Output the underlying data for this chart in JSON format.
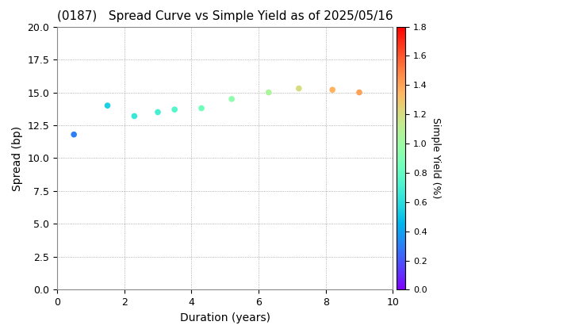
{
  "title": "(0187)   Spread Curve vs Simple Yield as of 2025/05/16",
  "xlabel": "Duration (years)",
  "ylabel": "Spread (bp)",
  "colorbar_label": "Simple Yield (%)",
  "xlim": [
    0,
    10
  ],
  "ylim": [
    0.0,
    20.0
  ],
  "xticks": [
    0,
    2,
    4,
    6,
    8,
    10
  ],
  "yticks": [
    0.0,
    2.5,
    5.0,
    7.5,
    10.0,
    12.5,
    15.0,
    17.5,
    20.0
  ],
  "colorbar_min": 0.0,
  "colorbar_max": 1.8,
  "colorbar_ticks": [
    0.0,
    0.2,
    0.4,
    0.6,
    0.8,
    1.0,
    1.2,
    1.4,
    1.6,
    1.8
  ],
  "points": [
    {
      "duration": 0.5,
      "spread": 11.8,
      "simple_yield": 0.3
    },
    {
      "duration": 1.5,
      "spread": 14.0,
      "simple_yield": 0.55
    },
    {
      "duration": 2.3,
      "spread": 13.2,
      "simple_yield": 0.65
    },
    {
      "duration": 3.0,
      "spread": 13.5,
      "simple_yield": 0.7
    },
    {
      "duration": 3.5,
      "spread": 13.7,
      "simple_yield": 0.75
    },
    {
      "duration": 4.3,
      "spread": 13.8,
      "simple_yield": 0.85
    },
    {
      "duration": 5.2,
      "spread": 14.5,
      "simple_yield": 0.95
    },
    {
      "duration": 6.3,
      "spread": 15.0,
      "simple_yield": 1.05
    },
    {
      "duration": 7.2,
      "spread": 15.3,
      "simple_yield": 1.2
    },
    {
      "duration": 8.2,
      "spread": 15.2,
      "simple_yield": 1.35
    },
    {
      "duration": 9.0,
      "spread": 15.0,
      "simple_yield": 1.4
    }
  ],
  "background_color": "#ffffff",
  "grid_color": "#999999",
  "title_fontsize": 11,
  "axis_fontsize": 10,
  "tick_fontsize": 9,
  "cbar_tick_fontsize": 8,
  "cbar_label_fontsize": 9,
  "marker_size": 20
}
